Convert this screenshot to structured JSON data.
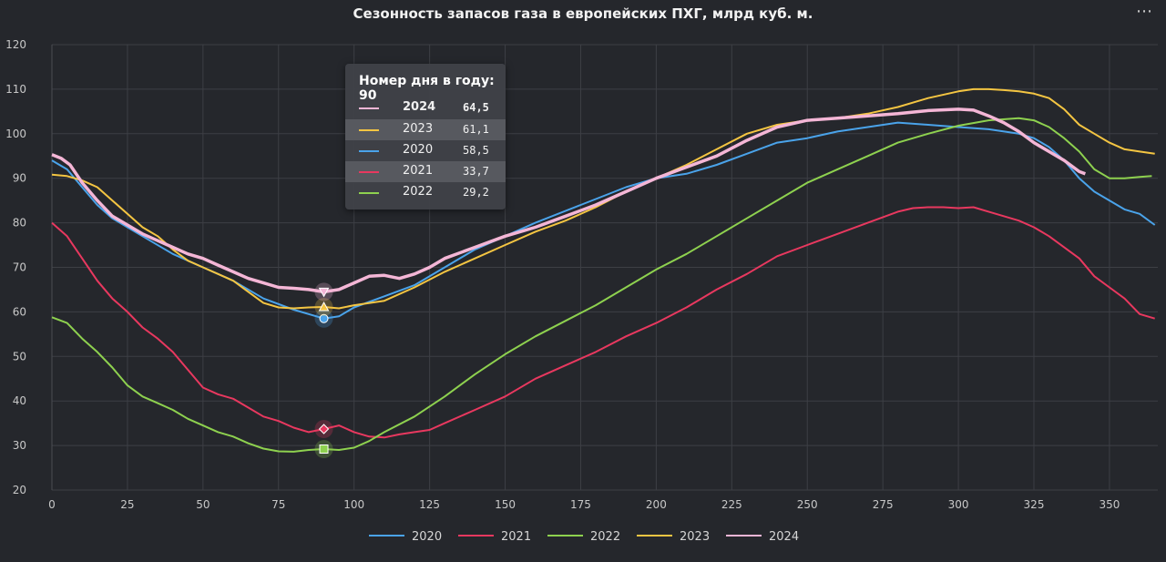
{
  "title": "Сезонность запасов газа в европейских ПХГ, млрд куб. м.",
  "menu_icon": "⋯",
  "tooltip": {
    "title": "Номер дня в году: 90",
    "rows": [
      {
        "year": "2024",
        "value": "64,5",
        "color": "#f4b6d6"
      },
      {
        "year": "2023",
        "value": "61,1",
        "color": "#f4c542"
      },
      {
        "year": "2020",
        "value": "58,5",
        "color": "#4aa3ea"
      },
      {
        "year": "2021",
        "value": "33,7",
        "color": "#e8385f"
      },
      {
        "year": "2022",
        "value": "29,2",
        "color": "#8ed14f"
      }
    ]
  },
  "chart_data": {
    "type": "line",
    "title": "Сезонность запасов газа в европейских ПХГ, млрд куб. м.",
    "xlim": [
      0,
      366
    ],
    "ylim": [
      20,
      120
    ],
    "x_ticks": [
      0,
      25,
      50,
      75,
      100,
      125,
      150,
      175,
      200,
      225,
      250,
      275,
      300,
      325,
      350
    ],
    "y_ticks": [
      20,
      30,
      40,
      50,
      60,
      70,
      80,
      90,
      100,
      110,
      120
    ],
    "grid": true,
    "legend_position": "bottom",
    "highlight_day": 90,
    "series": [
      {
        "name": "2020",
        "color": "#4aa3ea",
        "marker": "circle",
        "points": [
          [
            0,
            94
          ],
          [
            5,
            92
          ],
          [
            10,
            88
          ],
          [
            15,
            84
          ],
          [
            20,
            81
          ],
          [
            25,
            79
          ],
          [
            30,
            77
          ],
          [
            40,
            73
          ],
          [
            50,
            70
          ],
          [
            60,
            67
          ],
          [
            70,
            63
          ],
          [
            80,
            60.5
          ],
          [
            90,
            58.5
          ],
          [
            95,
            59
          ],
          [
            100,
            61
          ],
          [
            110,
            63.5
          ],
          [
            120,
            66
          ],
          [
            130,
            70
          ],
          [
            140,
            74
          ],
          [
            150,
            77
          ],
          [
            160,
            80
          ],
          [
            175,
            84
          ],
          [
            190,
            88
          ],
          [
            200,
            90
          ],
          [
            210,
            91
          ],
          [
            220,
            93
          ],
          [
            230,
            95.5
          ],
          [
            240,
            98
          ],
          [
            250,
            99
          ],
          [
            260,
            100.5
          ],
          [
            270,
            101.5
          ],
          [
            280,
            102.5
          ],
          [
            290,
            102
          ],
          [
            300,
            101.5
          ],
          [
            310,
            101
          ],
          [
            320,
            100
          ],
          [
            325,
            99
          ],
          [
            330,
            97
          ],
          [
            335,
            94
          ],
          [
            340,
            90
          ],
          [
            345,
            87
          ],
          [
            350,
            85
          ],
          [
            355,
            83
          ],
          [
            360,
            82
          ],
          [
            365,
            79.5
          ]
        ]
      },
      {
        "name": "2021",
        "color": "#e8385f",
        "marker": "diamond",
        "points": [
          [
            0,
            80
          ],
          [
            5,
            77
          ],
          [
            10,
            72
          ],
          [
            15,
            67
          ],
          [
            20,
            63
          ],
          [
            25,
            60
          ],
          [
            30,
            56.5
          ],
          [
            35,
            54
          ],
          [
            40,
            51
          ],
          [
            45,
            47
          ],
          [
            50,
            43
          ],
          [
            55,
            41.5
          ],
          [
            60,
            40.5
          ],
          [
            65,
            38.5
          ],
          [
            70,
            36.5
          ],
          [
            75,
            35.5
          ],
          [
            80,
            34
          ],
          [
            85,
            33
          ],
          [
            90,
            33.7
          ],
          [
            95,
            34.5
          ],
          [
            100,
            33
          ],
          [
            105,
            32
          ],
          [
            110,
            31.8
          ],
          [
            115,
            32.5
          ],
          [
            120,
            33
          ],
          [
            125,
            33.5
          ],
          [
            130,
            35
          ],
          [
            140,
            38
          ],
          [
            150,
            41
          ],
          [
            160,
            45
          ],
          [
            170,
            48
          ],
          [
            180,
            51
          ],
          [
            190,
            54.5
          ],
          [
            200,
            57.5
          ],
          [
            210,
            61
          ],
          [
            220,
            65
          ],
          [
            230,
            68.5
          ],
          [
            240,
            72.5
          ],
          [
            250,
            75
          ],
          [
            260,
            77.5
          ],
          [
            270,
            80
          ],
          [
            280,
            82.5
          ],
          [
            285,
            83.3
          ],
          [
            290,
            83.5
          ],
          [
            295,
            83.5
          ],
          [
            300,
            83.3
          ],
          [
            305,
            83.5
          ],
          [
            310,
            82.5
          ],
          [
            320,
            80.5
          ],
          [
            325,
            79
          ],
          [
            330,
            77
          ],
          [
            340,
            72
          ],
          [
            345,
            68
          ],
          [
            350,
            65.5
          ],
          [
            355,
            63
          ],
          [
            360,
            59.5
          ],
          [
            365,
            58.5
          ]
        ]
      },
      {
        "name": "2022",
        "color": "#8ed14f",
        "marker": "square",
        "points": [
          [
            0,
            58.8
          ],
          [
            5,
            57.5
          ],
          [
            10,
            54
          ],
          [
            15,
            51
          ],
          [
            20,
            47.5
          ],
          [
            25,
            43.5
          ],
          [
            30,
            41
          ],
          [
            35,
            39.5
          ],
          [
            40,
            38
          ],
          [
            45,
            36
          ],
          [
            50,
            34.5
          ],
          [
            55,
            33
          ],
          [
            60,
            32
          ],
          [
            65,
            30.5
          ],
          [
            70,
            29.3
          ],
          [
            75,
            28.7
          ],
          [
            80,
            28.6
          ],
          [
            85,
            29
          ],
          [
            90,
            29.2
          ],
          [
            95,
            29
          ],
          [
            100,
            29.5
          ],
          [
            105,
            31
          ],
          [
            110,
            33
          ],
          [
            120,
            36.5
          ],
          [
            130,
            41
          ],
          [
            140,
            46
          ],
          [
            150,
            50.5
          ],
          [
            160,
            54.5
          ],
          [
            170,
            58
          ],
          [
            180,
            61.5
          ],
          [
            190,
            65.5
          ],
          [
            200,
            69.5
          ],
          [
            210,
            73
          ],
          [
            220,
            77
          ],
          [
            230,
            81
          ],
          [
            240,
            85
          ],
          [
            250,
            89
          ],
          [
            260,
            92
          ],
          [
            270,
            95
          ],
          [
            280,
            98
          ],
          [
            290,
            100
          ],
          [
            300,
            101.8
          ],
          [
            310,
            103
          ],
          [
            320,
            103.5
          ],
          [
            325,
            103
          ],
          [
            330,
            101.5
          ],
          [
            335,
            99
          ],
          [
            340,
            96
          ],
          [
            345,
            92
          ],
          [
            350,
            90
          ],
          [
            355,
            90
          ],
          [
            360,
            90.3
          ],
          [
            364,
            90.5
          ]
        ]
      },
      {
        "name": "2023",
        "color": "#f4c542",
        "marker": "triangle",
        "points": [
          [
            0,
            90.8
          ],
          [
            5,
            90.5
          ],
          [
            10,
            89.5
          ],
          [
            15,
            88
          ],
          [
            20,
            85
          ],
          [
            25,
            82
          ],
          [
            30,
            79
          ],
          [
            35,
            77
          ],
          [
            40,
            74
          ],
          [
            45,
            71.5
          ],
          [
            50,
            70
          ],
          [
            55,
            68.5
          ],
          [
            60,
            67
          ],
          [
            65,
            64.5
          ],
          [
            70,
            62
          ],
          [
            75,
            61
          ],
          [
            80,
            60.8
          ],
          [
            85,
            61
          ],
          [
            90,
            61.1
          ],
          [
            95,
            60.8
          ],
          [
            100,
            61.5
          ],
          [
            110,
            62.5
          ],
          [
            120,
            65.5
          ],
          [
            130,
            69
          ],
          [
            140,
            72
          ],
          [
            150,
            75
          ],
          [
            160,
            78
          ],
          [
            170,
            80.5
          ],
          [
            180,
            83.5
          ],
          [
            190,
            87
          ],
          [
            200,
            90
          ],
          [
            210,
            93
          ],
          [
            220,
            96.5
          ],
          [
            230,
            100
          ],
          [
            240,
            102
          ],
          [
            250,
            103
          ],
          [
            260,
            103.5
          ],
          [
            270,
            104.5
          ],
          [
            280,
            106
          ],
          [
            290,
            108
          ],
          [
            300,
            109.5
          ],
          [
            305,
            110
          ],
          [
            310,
            110
          ],
          [
            315,
            109.8
          ],
          [
            320,
            109.5
          ],
          [
            325,
            109
          ],
          [
            330,
            108
          ],
          [
            335,
            105.5
          ],
          [
            340,
            102
          ],
          [
            345,
            100
          ],
          [
            350,
            98
          ],
          [
            355,
            96.5
          ],
          [
            360,
            96
          ],
          [
            365,
            95.5
          ]
        ]
      },
      {
        "name": "2024",
        "color": "#f4b6d6",
        "marker": "triangle-down",
        "points": [
          [
            0,
            95.3
          ],
          [
            3,
            94.5
          ],
          [
            6,
            93
          ],
          [
            10,
            89
          ],
          [
            15,
            85
          ],
          [
            20,
            81.5
          ],
          [
            25,
            79.5
          ],
          [
            30,
            77.5
          ],
          [
            35,
            76
          ],
          [
            40,
            74.5
          ],
          [
            45,
            73
          ],
          [
            50,
            72
          ],
          [
            55,
            70.5
          ],
          [
            60,
            69
          ],
          [
            65,
            67.5
          ],
          [
            70,
            66.5
          ],
          [
            75,
            65.5
          ],
          [
            80,
            65.3
          ],
          [
            85,
            65
          ],
          [
            90,
            64.5
          ],
          [
            95,
            65
          ],
          [
            100,
            66.5
          ],
          [
            105,
            68
          ],
          [
            110,
            68.2
          ],
          [
            115,
            67.5
          ],
          [
            120,
            68.5
          ],
          [
            125,
            70
          ],
          [
            130,
            72
          ],
          [
            140,
            74.5
          ],
          [
            150,
            77
          ],
          [
            160,
            79
          ],
          [
            170,
            81.5
          ],
          [
            180,
            84
          ],
          [
            190,
            87
          ],
          [
            200,
            90
          ],
          [
            210,
            92.5
          ],
          [
            220,
            95
          ],
          [
            230,
            98.5
          ],
          [
            240,
            101.5
          ],
          [
            250,
            103
          ],
          [
            260,
            103.5
          ],
          [
            270,
            104
          ],
          [
            280,
            104.5
          ],
          [
            290,
            105.2
          ],
          [
            300,
            105.5
          ],
          [
            305,
            105.3
          ],
          [
            310,
            104
          ],
          [
            315,
            102.5
          ],
          [
            320,
            100.5
          ],
          [
            325,
            98
          ],
          [
            330,
            96
          ],
          [
            335,
            94
          ],
          [
            340,
            91.5
          ],
          [
            342,
            91
          ]
        ]
      }
    ]
  }
}
